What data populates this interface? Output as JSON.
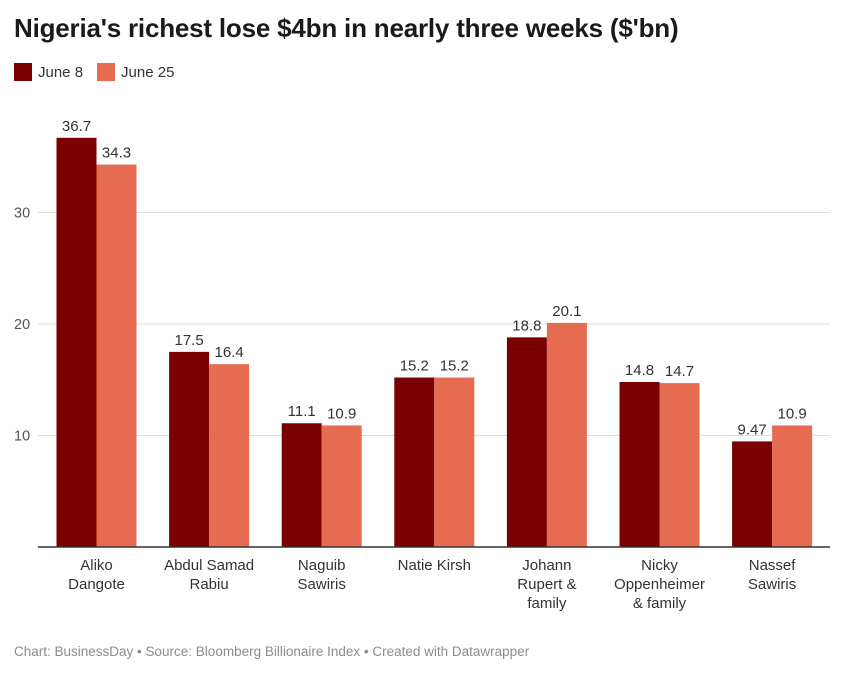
{
  "chart_data": {
    "type": "bar",
    "title": "Nigeria's richest lose $4bn in nearly three weeks ($'bn)",
    "categories": [
      [
        "Aliko",
        "Dangote"
      ],
      [
        "Abdul Samad",
        "Rabiu"
      ],
      [
        "Naguib",
        "Sawiris"
      ],
      [
        "Natie Kirsh"
      ],
      [
        "Johann",
        "Rupert &",
        "family"
      ],
      [
        "Nicky",
        "Oppenheimer",
        "& family"
      ],
      [
        "Nassef",
        "Sawiris"
      ]
    ],
    "series": [
      {
        "name": "June 8",
        "color": "#7a0000",
        "values": [
          36.7,
          17.5,
          11.1,
          15.2,
          18.8,
          14.8,
          9.47
        ],
        "labels": [
          "36.7",
          "17.5",
          "11.1",
          "15.2",
          "18.8",
          "14.8",
          "9.47"
        ]
      },
      {
        "name": "June 25",
        "color": "#e56b51",
        "values": [
          34.3,
          16.4,
          10.9,
          15.2,
          20.1,
          14.7,
          10.9
        ],
        "labels": [
          "34.3",
          "16.4",
          "10.9",
          "15.2",
          "20.1",
          "14.7",
          "10.9"
        ]
      }
    ],
    "yticks": [
      "10",
      "20",
      "30"
    ],
    "ylim": [
      0,
      40
    ],
    "grid": true,
    "legend": "top-left",
    "footer": "Chart: BusinessDay • Source: Bloomberg Billionaire Index • Created with Datawrapper"
  }
}
